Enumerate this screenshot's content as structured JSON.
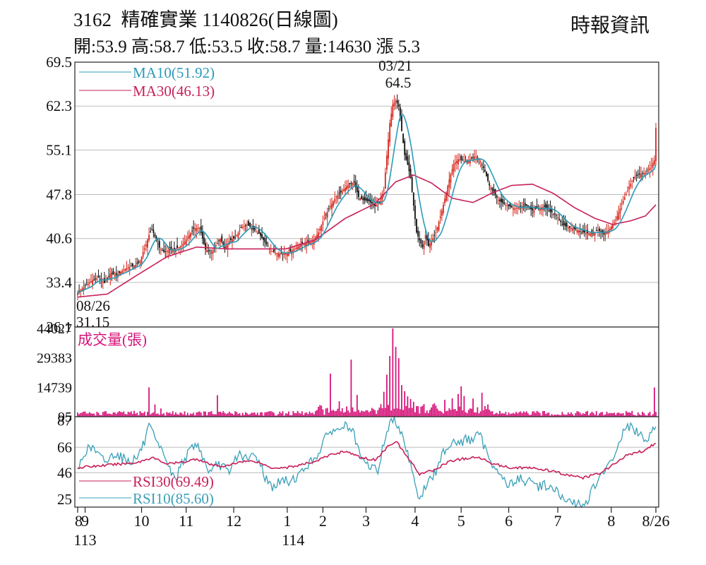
{
  "header": {
    "title": "3162  精確實業 1140826(日線圖)",
    "stats": "開:53.9 高:58.7 低:53.5 收:58.7 量:14630 漲 5.3",
    "source": "時報資訊"
  },
  "colors": {
    "up": "#d7281e",
    "down": "#111111",
    "ma10": "#2a9bb8",
    "ma30": "#c8205a",
    "volume": "#d6157a",
    "rsi30": "#c8205a",
    "rsi10": "#3aa0b8",
    "grid": "#bdbdbd",
    "frame": "#222222"
  },
  "chart_data": [
    {
      "type": "candlestick",
      "name": "price",
      "yticks": [
        "69.5",
        "62.3",
        "55.1",
        "47.8",
        "40.6",
        "33.4",
        "26.1"
      ],
      "ylim": [
        26.1,
        69.5
      ],
      "legend": [
        {
          "key": "ma10",
          "label": "MA10(51.92)"
        },
        {
          "key": "ma30",
          "label": "MA30(46.13)"
        }
      ],
      "annotations": [
        {
          "key": "high",
          "date": "03/21",
          "value": "64.5"
        },
        {
          "key": "low",
          "date": "08/26",
          "value": "31.15"
        }
      ],
      "anchors": [
        [
          0,
          31.7
        ],
        [
          6,
          33.0
        ],
        [
          10,
          33.8
        ],
        [
          14,
          34.2
        ],
        [
          18,
          33.3
        ],
        [
          22,
          34.8
        ],
        [
          26,
          34.6
        ],
        [
          30,
          35.3
        ],
        [
          34,
          35.9
        ],
        [
          38,
          36.1
        ],
        [
          42,
          36.8
        ],
        [
          44,
          38.4
        ],
        [
          46,
          39.6
        ],
        [
          48,
          41.2
        ],
        [
          50,
          42.1
        ],
        [
          52,
          40.9
        ],
        [
          55,
          39.1
        ],
        [
          58,
          38.4
        ],
        [
          62,
          38.7
        ],
        [
          66,
          38.9
        ],
        [
          70,
          39.4
        ],
        [
          74,
          40.8
        ],
        [
          78,
          42.2
        ],
        [
          82,
          42.4
        ],
        [
          86,
          38.8
        ],
        [
          90,
          38.4
        ],
        [
          93,
          39.5
        ],
        [
          96,
          40.6
        ],
        [
          99,
          39.0
        ],
        [
          102,
          40.2
        ],
        [
          106,
          40.8
        ],
        [
          110,
          42.3
        ],
        [
          114,
          42.9
        ],
        [
          118,
          42.1
        ],
        [
          122,
          41.4
        ],
        [
          126,
          40.0
        ],
        [
          130,
          38.6
        ],
        [
          134,
          38.2
        ],
        [
          138,
          38.1
        ],
        [
          142,
          38.4
        ],
        [
          146,
          38.9
        ],
        [
          150,
          39.6
        ],
        [
          154,
          39.8
        ],
        [
          158,
          40.1
        ],
        [
          162,
          41.6
        ],
        [
          166,
          44.0
        ],
        [
          170,
          45.9
        ],
        [
          174,
          47.5
        ],
        [
          178,
          48.4
        ],
        [
          182,
          49.4
        ],
        [
          186,
          49.8
        ],
        [
          189,
          47.4
        ],
        [
          192,
          46.9
        ],
        [
          196,
          46.7
        ],
        [
          200,
          45.9
        ],
        [
          203,
          46.6
        ],
        [
          206,
          48.6
        ],
        [
          208,
          54.2
        ],
        [
          210,
          59.5
        ],
        [
          212,
          62.6
        ],
        [
          214,
          63.2
        ],
        [
          216,
          62.2
        ],
        [
          218,
          58.2
        ],
        [
          220,
          54.3
        ],
        [
          222,
          52.7
        ],
        [
          224,
          50.5
        ],
        [
          226,
          46.0
        ],
        [
          228,
          41.6
        ],
        [
          230,
          40.3
        ],
        [
          232,
          39.2
        ],
        [
          234,
          41.2
        ],
        [
          236,
          39.4
        ],
        [
          238,
          40.1
        ],
        [
          241,
          41.6
        ],
        [
          244,
          44.2
        ],
        [
          247,
          47.1
        ],
        [
          250,
          50.3
        ],
        [
          253,
          52.8
        ],
        [
          256,
          53.6
        ],
        [
          259,
          53.4
        ],
        [
          262,
          53.1
        ],
        [
          265,
          53.8
        ],
        [
          268,
          54.1
        ],
        [
          271,
          53.2
        ],
        [
          274,
          51.6
        ],
        [
          277,
          49.3
        ],
        [
          280,
          48.1
        ],
        [
          283,
          46.9
        ],
        [
          286,
          46.4
        ],
        [
          290,
          45.9
        ],
        [
          294,
          45.5
        ],
        [
          298,
          45.8
        ],
        [
          302,
          46.0
        ],
        [
          306,
          45.2
        ],
        [
          310,
          45.6
        ],
        [
          314,
          45.8
        ],
        [
          318,
          45.0
        ],
        [
          322,
          44.4
        ],
        [
          326,
          42.9
        ],
        [
          330,
          42.4
        ],
        [
          334,
          42.2
        ],
        [
          338,
          41.8
        ],
        [
          342,
          41.5
        ],
        [
          346,
          41.4
        ],
        [
          350,
          42.0
        ],
        [
          354,
          41.3
        ],
        [
          358,
          42.2
        ],
        [
          362,
          43.6
        ],
        [
          366,
          46.2
        ],
        [
          370,
          48.5
        ],
        [
          374,
          50.6
        ],
        [
          378,
          51.1
        ],
        [
          382,
          51.4
        ],
        [
          385,
          52.2
        ],
        [
          388,
          53.4
        ],
        [
          389,
          58.7
        ]
      ],
      "ma30_anchors": [
        [
          0,
          31.0
        ],
        [
          20,
          31.5
        ],
        [
          40,
          34.6
        ],
        [
          60,
          37.6
        ],
        [
          80,
          39.2
        ],
        [
          100,
          38.9
        ],
        [
          120,
          38.9
        ],
        [
          140,
          38.9
        ],
        [
          160,
          40.4
        ],
        [
          180,
          43.9
        ],
        [
          200,
          46.3
        ],
        [
          214,
          49.9
        ],
        [
          226,
          51.0
        ],
        [
          238,
          49.7
        ],
        [
          252,
          47.2
        ],
        [
          266,
          46.5
        ],
        [
          280,
          48.2
        ],
        [
          292,
          49.3
        ],
        [
          306,
          49.5
        ],
        [
          320,
          48.0
        ],
        [
          334,
          45.7
        ],
        [
          348,
          43.9
        ],
        [
          360,
          42.9
        ],
        [
          372,
          43.5
        ],
        [
          382,
          44.3
        ],
        [
          389,
          46.13
        ]
      ]
    },
    {
      "type": "bar",
      "name": "volume",
      "title": "成交量(張)",
      "yticks": [
        "44027",
        "29383",
        "14739",
        "95"
      ],
      "ylim": [
        95,
        44027
      ],
      "spikes": [
        [
          48,
          14700
        ],
        [
          52,
          6200
        ],
        [
          56,
          4200
        ],
        [
          94,
          10800
        ],
        [
          170,
          21500
        ],
        [
          176,
          7800
        ],
        [
          184,
          28500
        ],
        [
          188,
          10900
        ],
        [
          206,
          12500
        ],
        [
          208,
          21000
        ],
        [
          210,
          30300
        ],
        [
          212,
          44027
        ],
        [
          214,
          34800
        ],
        [
          216,
          29200
        ],
        [
          218,
          15800
        ],
        [
          220,
          12800
        ],
        [
          222,
          10200
        ],
        [
          224,
          8900
        ],
        [
          226,
          7500
        ],
        [
          233,
          6400
        ],
        [
          240,
          6800
        ],
        [
          247,
          8500
        ],
        [
          252,
          9200
        ],
        [
          256,
          11400
        ],
        [
          258,
          15200
        ],
        [
          260,
          10400
        ],
        [
          266,
          9100
        ],
        [
          272,
          12000
        ],
        [
          276,
          6200
        ],
        [
          388,
          14630
        ]
      ]
    },
    {
      "type": "line",
      "name": "rsi",
      "yticks": [
        "87",
        "66",
        "46",
        "25"
      ],
      "ylim": [
        19,
        90
      ],
      "legend": [
        {
          "key": "rsi30",
          "label": "RSI30(69.49)"
        },
        {
          "key": "rsi10",
          "label": "RSI10(85.60)"
        }
      ],
      "rsi10_anchors": [
        [
          0,
          48
        ],
        [
          5,
          63
        ],
        [
          10,
          66
        ],
        [
          15,
          58
        ],
        [
          20,
          55
        ],
        [
          25,
          62
        ],
        [
          30,
          58
        ],
        [
          35,
          55
        ],
        [
          40,
          58
        ],
        [
          45,
          70
        ],
        [
          48,
          82
        ],
        [
          52,
          72
        ],
        [
          55,
          64
        ],
        [
          58,
          62
        ],
        [
          62,
          48
        ],
        [
          66,
          40
        ],
        [
          70,
          55
        ],
        [
          74,
          60
        ],
        [
          78,
          68
        ],
        [
          82,
          66
        ],
        [
          86,
          52
        ],
        [
          90,
          45
        ],
        [
          94,
          53
        ],
        [
          98,
          51
        ],
        [
          102,
          44
        ],
        [
          106,
          58
        ],
        [
          110,
          61
        ],
        [
          114,
          55
        ],
        [
          118,
          60
        ],
        [
          122,
          56
        ],
        [
          126,
          43
        ],
        [
          130,
          35
        ],
        [
          134,
          37
        ],
        [
          138,
          40
        ],
        [
          142,
          39
        ],
        [
          146,
          42
        ],
        [
          150,
          45
        ],
        [
          154,
          52
        ],
        [
          158,
          55
        ],
        [
          162,
          62
        ],
        [
          166,
          71
        ],
        [
          170,
          80
        ],
        [
          174,
          78
        ],
        [
          178,
          83
        ],
        [
          182,
          82
        ],
        [
          186,
          75
        ],
        [
          190,
          58
        ],
        [
          194,
          52
        ],
        [
          198,
          51
        ],
        [
          202,
          47
        ],
        [
          206,
          70
        ],
        [
          210,
          85
        ],
        [
          214,
          87
        ],
        [
          218,
          78
        ],
        [
          222,
          61
        ],
        [
          226,
          45
        ],
        [
          230,
          23
        ],
        [
          234,
          36
        ],
        [
          238,
          42
        ],
        [
          242,
          48
        ],
        [
          246,
          63
        ],
        [
          250,
          68
        ],
        [
          254,
          72
        ],
        [
          258,
          69
        ],
        [
          262,
          73
        ],
        [
          266,
          71
        ],
        [
          270,
          77
        ],
        [
          274,
          65
        ],
        [
          278,
          56
        ],
        [
          282,
          47
        ],
        [
          286,
          42
        ],
        [
          290,
          36
        ],
        [
          294,
          39
        ],
        [
          298,
          42
        ],
        [
          302,
          38
        ],
        [
          306,
          39
        ],
        [
          310,
          35
        ],
        [
          314,
          37
        ],
        [
          318,
          34
        ],
        [
          322,
          32
        ],
        [
          326,
          25
        ],
        [
          330,
          23
        ],
        [
          334,
          22
        ],
        [
          338,
          21
        ],
        [
          342,
          22
        ],
        [
          346,
          32
        ],
        [
          350,
          40
        ],
        [
          354,
          45
        ],
        [
          358,
          53
        ],
        [
          362,
          62
        ],
        [
          366,
          75
        ],
        [
          370,
          83
        ],
        [
          374,
          80
        ],
        [
          378,
          75
        ],
        [
          382,
          72
        ],
        [
          386,
          78
        ],
        [
          389,
          85.6
        ]
      ],
      "rsi30_anchors": [
        [
          0,
          50
        ],
        [
          20,
          52
        ],
        [
          40,
          54
        ],
        [
          50,
          58
        ],
        [
          60,
          53
        ],
        [
          70,
          54
        ],
        [
          80,
          57
        ],
        [
          90,
          52
        ],
        [
          100,
          51
        ],
        [
          110,
          55
        ],
        [
          120,
          55
        ],
        [
          130,
          50
        ],
        [
          140,
          50
        ],
        [
          150,
          52
        ],
        [
          160,
          55
        ],
        [
          170,
          60
        ],
        [
          180,
          63
        ],
        [
          190,
          58
        ],
        [
          200,
          56
        ],
        [
          210,
          68
        ],
        [
          214,
          71
        ],
        [
          222,
          58
        ],
        [
          230,
          45
        ],
        [
          240,
          48
        ],
        [
          250,
          55
        ],
        [
          260,
          57
        ],
        [
          270,
          58
        ],
        [
          280,
          53
        ],
        [
          290,
          50
        ],
        [
          300,
          50
        ],
        [
          310,
          49
        ],
        [
          320,
          47
        ],
        [
          330,
          44
        ],
        [
          340,
          42
        ],
        [
          350,
          45
        ],
        [
          360,
          52
        ],
        [
          370,
          60
        ],
        [
          380,
          63
        ],
        [
          389,
          69.49
        ]
      ]
    }
  ],
  "x_axis": {
    "month_labels": [
      {
        "key": "aug",
        "label": "8",
        "pos": 0
      },
      {
        "key": "sep",
        "label": "9",
        "pos": 5
      },
      {
        "key": "oct",
        "label": "10",
        "pos": 43
      },
      {
        "key": "nov",
        "label": "11",
        "pos": 73
      },
      {
        "key": "dec",
        "label": "12",
        "pos": 105
      },
      {
        "key": "jan",
        "label": "1",
        "pos": 141
      },
      {
        "key": "feb",
        "label": "2",
        "pos": 165
      },
      {
        "key": "mar",
        "label": "3",
        "pos": 194
      },
      {
        "key": "apr",
        "label": "4",
        "pos": 227
      },
      {
        "key": "may",
        "label": "5",
        "pos": 258
      },
      {
        "key": "jun",
        "label": "6",
        "pos": 290
      },
      {
        "key": "jul",
        "label": "7",
        "pos": 323
      },
      {
        "key": "aug2",
        "label": "8",
        "pos": 359
      },
      {
        "key": "end",
        "label": "8/26",
        "pos": 389
      }
    ],
    "year_labels": [
      {
        "key": "y113",
        "label": "113",
        "pos": 5
      },
      {
        "key": "y114",
        "label": "114",
        "pos": 145
      }
    ],
    "total_days": 390
  }
}
